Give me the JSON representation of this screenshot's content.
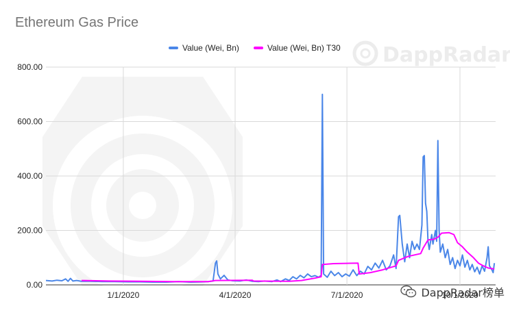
{
  "watermark": {
    "brand": "DappRadar",
    "footer": "DappRadar榜单"
  },
  "colors": {
    "series1": "#4a86e8",
    "series2": "#ff00ff",
    "grid": "#d9d9d9",
    "watermark": "#ececec"
  },
  "chart_data": {
    "type": "line",
    "title": "Ethereum Gas Price",
    "xlabel": "",
    "ylabel": "",
    "ylim": [
      0,
      800
    ],
    "yticks": [
      "800.00",
      "600.00",
      "400.00",
      "200.00",
      "0.00"
    ],
    "xlim": [
      "2019-10-30",
      "2020-10-30"
    ],
    "xticks": [
      {
        "date": "2020-01-01",
        "label": "1/1/2020"
      },
      {
        "date": "2020-04-01",
        "label": "4/1/2020"
      },
      {
        "date": "2020-07-01",
        "label": "7/1/2020"
      },
      {
        "date": "2020-10-01",
        "label": "10/1/2020"
      }
    ],
    "grid": true,
    "legend_position": "top",
    "series": [
      {
        "name": "Value (Wei, Bn)",
        "points": [
          [
            "2019-10-30",
            16
          ],
          [
            "2019-11-04",
            14
          ],
          [
            "2019-11-08",
            17
          ],
          [
            "2019-11-12",
            15
          ],
          [
            "2019-11-15",
            22
          ],
          [
            "2019-11-17",
            13
          ],
          [
            "2019-11-19",
            24
          ],
          [
            "2019-11-21",
            14
          ],
          [
            "2019-11-24",
            16
          ],
          [
            "2019-11-28",
            13
          ],
          [
            "2019-12-05",
            13
          ],
          [
            "2019-12-15",
            12
          ],
          [
            "2019-12-25",
            12
          ],
          [
            "2020-01-05",
            11
          ],
          [
            "2020-01-15",
            11
          ],
          [
            "2020-01-25",
            10
          ],
          [
            "2020-02-05",
            10
          ],
          [
            "2020-02-15",
            12
          ],
          [
            "2020-02-25",
            10
          ],
          [
            "2020-03-05",
            11
          ],
          [
            "2020-03-10",
            12
          ],
          [
            "2020-03-14",
            14
          ],
          [
            "2020-03-16",
            80
          ],
          [
            "2020-03-17",
            88
          ],
          [
            "2020-03-18",
            40
          ],
          [
            "2020-03-20",
            22
          ],
          [
            "2020-03-23",
            35
          ],
          [
            "2020-03-26",
            18
          ],
          [
            "2020-03-30",
            15
          ],
          [
            "2020-04-05",
            14
          ],
          [
            "2020-04-10",
            18
          ],
          [
            "2020-04-15",
            13
          ],
          [
            "2020-04-20",
            12
          ],
          [
            "2020-04-25",
            14
          ],
          [
            "2020-05-01",
            12
          ],
          [
            "2020-05-05",
            18
          ],
          [
            "2020-05-08",
            12
          ],
          [
            "2020-05-12",
            22
          ],
          [
            "2020-05-15",
            16
          ],
          [
            "2020-05-18",
            30
          ],
          [
            "2020-05-21",
            22
          ],
          [
            "2020-05-24",
            35
          ],
          [
            "2020-05-27",
            26
          ],
          [
            "2020-05-30",
            40
          ],
          [
            "2020-06-02",
            30
          ],
          [
            "2020-06-05",
            34
          ],
          [
            "2020-06-08",
            28
          ],
          [
            "2020-06-10",
            35
          ],
          [
            "2020-06-11",
            700
          ],
          [
            "2020-06-12",
            40
          ],
          [
            "2020-06-15",
            28
          ],
          [
            "2020-06-18",
            50
          ],
          [
            "2020-06-21",
            34
          ],
          [
            "2020-06-24",
            45
          ],
          [
            "2020-06-27",
            30
          ],
          [
            "2020-06-30",
            40
          ],
          [
            "2020-07-03",
            32
          ],
          [
            "2020-07-06",
            55
          ],
          [
            "2020-07-09",
            34
          ],
          [
            "2020-07-12",
            50
          ],
          [
            "2020-07-15",
            40
          ],
          [
            "2020-07-18",
            68
          ],
          [
            "2020-07-21",
            55
          ],
          [
            "2020-07-24",
            80
          ],
          [
            "2020-07-27",
            62
          ],
          [
            "2020-07-30",
            90
          ],
          [
            "2020-08-02",
            55
          ],
          [
            "2020-08-05",
            70
          ],
          [
            "2020-08-08",
            110
          ],
          [
            "2020-08-10",
            60
          ],
          [
            "2020-08-12",
            250
          ],
          [
            "2020-08-13",
            255
          ],
          [
            "2020-08-15",
            150
          ],
          [
            "2020-08-17",
            85
          ],
          [
            "2020-08-19",
            150
          ],
          [
            "2020-08-21",
            100
          ],
          [
            "2020-08-23",
            160
          ],
          [
            "2020-08-25",
            130
          ],
          [
            "2020-08-27",
            150
          ],
          [
            "2020-08-29",
            130
          ],
          [
            "2020-08-31",
            220
          ],
          [
            "2020-09-01",
            470
          ],
          [
            "2020-09-02",
            475
          ],
          [
            "2020-09-03",
            300
          ],
          [
            "2020-09-04",
            270
          ],
          [
            "2020-09-05",
            160
          ],
          [
            "2020-09-06",
            130
          ],
          [
            "2020-09-08",
            185
          ],
          [
            "2020-09-09",
            150
          ],
          [
            "2020-09-11",
            200
          ],
          [
            "2020-09-12",
            160
          ],
          [
            "2020-09-13",
            530
          ],
          [
            "2020-09-14",
            200
          ],
          [
            "2020-09-15",
            120
          ],
          [
            "2020-09-17",
            150
          ],
          [
            "2020-09-19",
            100
          ],
          [
            "2020-09-21",
            130
          ],
          [
            "2020-09-23",
            75
          ],
          [
            "2020-09-25",
            100
          ],
          [
            "2020-09-27",
            60
          ],
          [
            "2020-09-29",
            90
          ],
          [
            "2020-10-01",
            70
          ],
          [
            "2020-10-03",
            110
          ],
          [
            "2020-10-05",
            65
          ],
          [
            "2020-10-07",
            90
          ],
          [
            "2020-10-09",
            55
          ],
          [
            "2020-10-11",
            75
          ],
          [
            "2020-10-13",
            48
          ],
          [
            "2020-10-15",
            65
          ],
          [
            "2020-10-17",
            40
          ],
          [
            "2020-10-19",
            70
          ],
          [
            "2020-10-21",
            50
          ],
          [
            "2020-10-23",
            100
          ],
          [
            "2020-10-24",
            140
          ],
          [
            "2020-10-25",
            70
          ],
          [
            "2020-10-27",
            55
          ],
          [
            "2020-10-28",
            45
          ],
          [
            "2020-10-29",
            80
          ]
        ]
      },
      {
        "name": "Value (Wei, Bn) T30",
        "points": [
          [
            "2019-11-28",
            16
          ],
          [
            "2019-12-20",
            14
          ],
          [
            "2020-01-15",
            13
          ],
          [
            "2020-02-10",
            12
          ],
          [
            "2020-03-10",
            12
          ],
          [
            "2020-03-16",
            16
          ],
          [
            "2020-04-15",
            17
          ],
          [
            "2020-04-16",
            14
          ],
          [
            "2020-05-15",
            13
          ],
          [
            "2020-05-25",
            16
          ],
          [
            "2020-06-05",
            25
          ],
          [
            "2020-06-10",
            30
          ],
          [
            "2020-06-11",
            75
          ],
          [
            "2020-06-20",
            78
          ],
          [
            "2020-06-30",
            79
          ],
          [
            "2020-07-10",
            80
          ],
          [
            "2020-07-11",
            40
          ],
          [
            "2020-07-20",
            45
          ],
          [
            "2020-07-30",
            55
          ],
          [
            "2020-08-10",
            70
          ],
          [
            "2020-08-12",
            90
          ],
          [
            "2020-08-20",
            105
          ],
          [
            "2020-08-30",
            115
          ],
          [
            "2020-09-01",
            135
          ],
          [
            "2020-09-05",
            165
          ],
          [
            "2020-09-10",
            168
          ],
          [
            "2020-09-13",
            175
          ],
          [
            "2020-09-16",
            190
          ],
          [
            "2020-09-22",
            192
          ],
          [
            "2020-09-26",
            185
          ],
          [
            "2020-09-29",
            155
          ],
          [
            "2020-10-03",
            140
          ],
          [
            "2020-10-07",
            120
          ],
          [
            "2020-10-12",
            100
          ],
          [
            "2020-10-16",
            80
          ],
          [
            "2020-10-20",
            70
          ],
          [
            "2020-10-24",
            62
          ],
          [
            "2020-10-29",
            58
          ]
        ]
      }
    ]
  }
}
